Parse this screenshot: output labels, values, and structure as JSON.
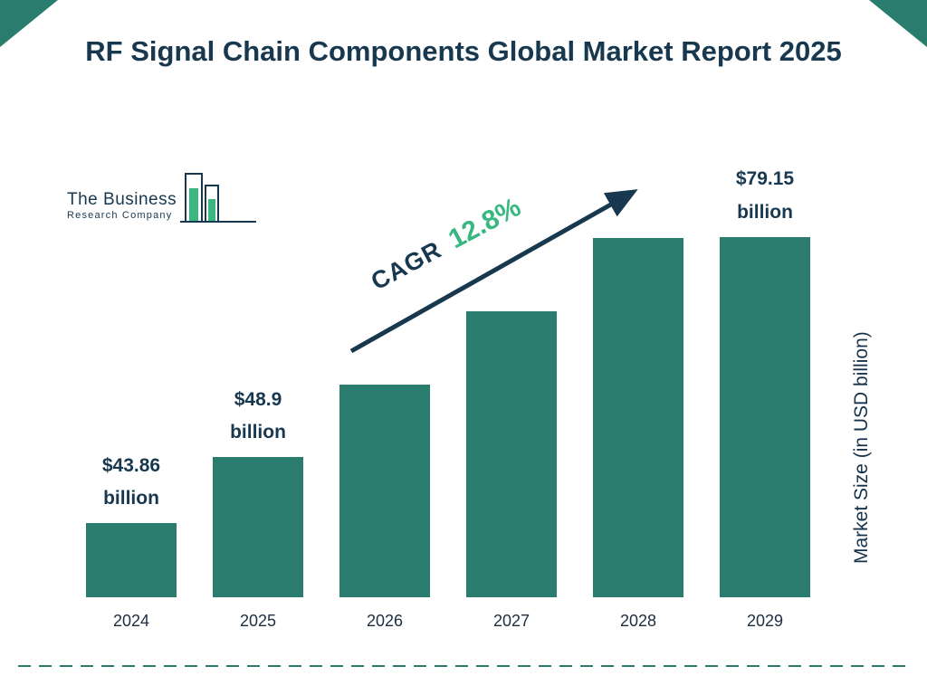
{
  "page": {
    "title": "RF Signal Chain Components Global Market Report 2025",
    "logo": {
      "line1": "The Business",
      "line2": "Research Company"
    },
    "cagr": {
      "label": "CAGR",
      "value": "12.8%"
    },
    "y_axis_label": "Market Size (in USD billion)"
  },
  "chart_data": {
    "type": "bar",
    "title": "RF Signal Chain Components Global Market Report 2025",
    "categories": [
      "2024",
      "2025",
      "2026",
      "2027",
      "2028",
      "2029"
    ],
    "values": [
      43.86,
      48.9,
      55.16,
      62.22,
      70.18,
      79.15
    ],
    "labels": [
      {
        "amount": "$43.86",
        "unit": "billion"
      },
      {
        "amount": "$48.9",
        "unit": "billion"
      },
      null,
      null,
      null,
      {
        "amount": "$79.15",
        "unit": "billion"
      }
    ],
    "cagr_percent": 12.8,
    "xlabel": "",
    "ylabel": "Market Size (in USD billion)",
    "legend": false,
    "grid": false,
    "bar_color": "#2a7d6e",
    "accent_green": "#38b780",
    "navy_color": "#17384f"
  }
}
